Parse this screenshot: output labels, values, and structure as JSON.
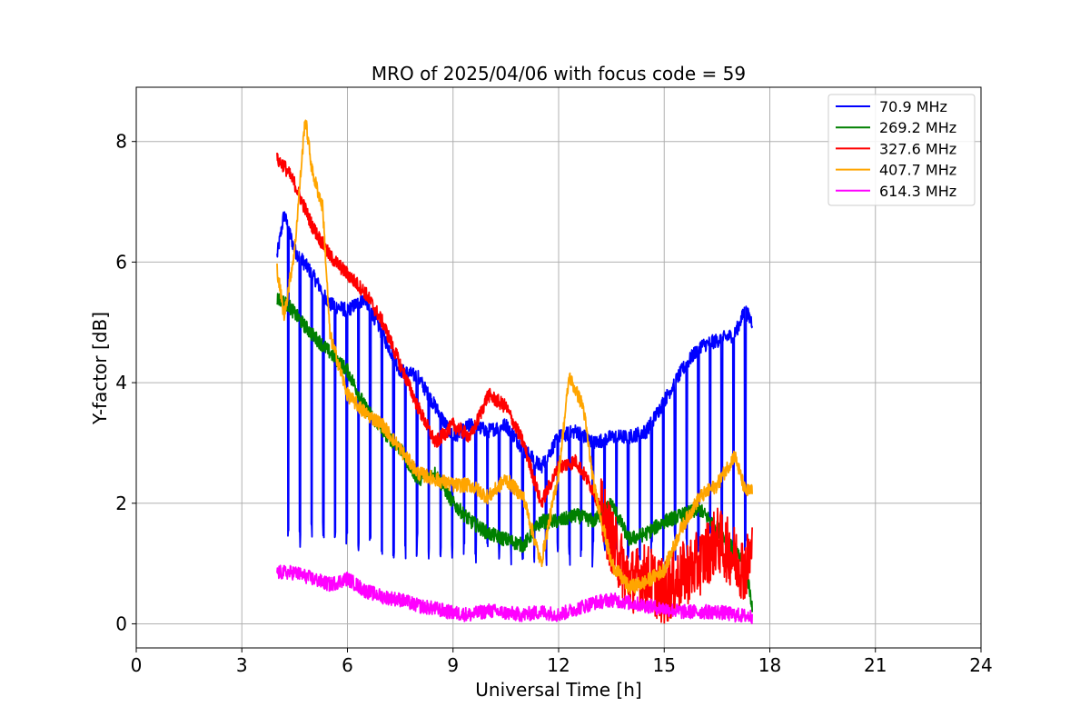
{
  "chart_data": {
    "type": "line",
    "title": "MRO of 2025/04/06 with focus code = 59",
    "xlabel": "Universal Time [h]",
    "ylabel": "Y-factor [dB]",
    "xlim": [
      0,
      24
    ],
    "ylim": [
      -0.4,
      8.9
    ],
    "xticks": [
      0,
      3,
      6,
      9,
      12,
      15,
      18,
      21,
      24
    ],
    "yticks": [
      0,
      2,
      4,
      6,
      8
    ],
    "grid": true,
    "legend_position": "top-right",
    "series": [
      {
        "name": " 70.9 MHz",
        "color": "#0000ff",
        "x": [
          4.0,
          4.2,
          4.5,
          5.0,
          5.5,
          6.0,
          6.5,
          7.0,
          7.5,
          8.0,
          8.5,
          9.0,
          9.5,
          10.0,
          10.5,
          11.0,
          11.5,
          12.0,
          12.5,
          13.0,
          13.5,
          14.0,
          14.5,
          15.0,
          15.5,
          16.0,
          16.5,
          17.0,
          17.3,
          17.5
        ],
        "y": [
          6.1,
          6.8,
          6.2,
          5.8,
          5.3,
          5.2,
          5.4,
          4.8,
          4.2,
          4.1,
          3.6,
          3.1,
          3.3,
          3.2,
          3.3,
          2.9,
          2.6,
          3.1,
          3.2,
          3.0,
          3.1,
          3.1,
          3.2,
          3.7,
          4.2,
          4.6,
          4.7,
          4.8,
          5.2,
          5.0
        ],
        "dips": {
          "period_h": 0.333,
          "low": 1.0
        }
      },
      {
        "name": " 269.2 MHz",
        "color": "#008000",
        "x": [
          4.0,
          4.3,
          4.7,
          5.0,
          5.5,
          6.0,
          6.5,
          7.0,
          7.5,
          8.0,
          8.5,
          9.0,
          9.5,
          10.0,
          10.5,
          11.0,
          11.5,
          12.0,
          12.5,
          13.0,
          13.5,
          14.0,
          14.5,
          15.0,
          15.5,
          16.0,
          16.5,
          17.0,
          17.3,
          17.5
        ],
        "y": [
          5.4,
          5.3,
          5.0,
          4.8,
          4.5,
          4.2,
          3.6,
          3.2,
          2.9,
          2.4,
          2.5,
          2.0,
          1.7,
          1.5,
          1.4,
          1.3,
          1.7,
          1.7,
          1.8,
          1.7,
          2.0,
          1.4,
          1.5,
          1.7,
          1.8,
          1.9,
          1.6,
          1.2,
          1.0,
          0.3
        ]
      },
      {
        "name": " 327.6 MHz",
        "color": "#ff0000",
        "x": [
          4.0,
          4.2,
          4.5,
          5.0,
          5.5,
          6.0,
          6.5,
          7.0,
          7.5,
          8.0,
          8.5,
          9.0,
          9.5,
          10.0,
          10.5,
          11.0,
          11.5,
          12.0,
          12.5,
          13.0,
          13.5,
          14.0,
          14.5,
          15.0,
          15.5,
          16.0,
          16.5,
          17.0,
          17.3,
          17.5
        ],
        "y": [
          7.7,
          7.6,
          7.3,
          6.6,
          6.1,
          5.8,
          5.5,
          5.0,
          4.3,
          3.6,
          3.0,
          3.3,
          3.1,
          3.8,
          3.6,
          3.0,
          2.0,
          2.6,
          2.7,
          2.2,
          1.4,
          0.7,
          0.8,
          0.5,
          0.8,
          1.0,
          1.4,
          1.1,
          0.9,
          1.2
        ],
        "noise_from_h": 13.2
      },
      {
        "name": " 407.7 MHz",
        "color": "#ffa500",
        "x": [
          4.0,
          4.2,
          4.5,
          4.8,
          5.0,
          5.3,
          5.5,
          6.0,
          6.5,
          7.0,
          7.5,
          8.0,
          8.5,
          9.0,
          9.5,
          10.0,
          10.5,
          11.0,
          11.5,
          12.0,
          12.3,
          12.7,
          13.0,
          13.5,
          14.0,
          14.5,
          15.0,
          15.5,
          16.0,
          16.5,
          17.0,
          17.3,
          17.5
        ],
        "y": [
          5.9,
          5.1,
          6.2,
          8.4,
          7.5,
          6.9,
          4.8,
          3.8,
          3.5,
          3.3,
          2.9,
          2.5,
          2.4,
          2.3,
          2.3,
          2.1,
          2.4,
          2.1,
          1.0,
          2.5,
          4.1,
          3.6,
          2.3,
          1.0,
          0.6,
          0.7,
          0.9,
          1.6,
          2.1,
          2.3,
          2.8,
          2.2,
          2.2
        ]
      },
      {
        "name": " 614.3 MHz",
        "color": "#ff00ff",
        "x": [
          4.0,
          4.5,
          5.0,
          5.5,
          6.0,
          6.5,
          7.0,
          7.5,
          8.0,
          8.5,
          9.0,
          9.5,
          10.0,
          10.5,
          11.0,
          11.5,
          12.0,
          12.5,
          13.0,
          13.5,
          14.0,
          14.5,
          15.0,
          15.5,
          16.0,
          16.5,
          17.0,
          17.5
        ],
        "y": [
          0.85,
          0.85,
          0.75,
          0.65,
          0.75,
          0.55,
          0.45,
          0.4,
          0.3,
          0.25,
          0.18,
          0.15,
          0.22,
          0.18,
          0.15,
          0.2,
          0.15,
          0.25,
          0.35,
          0.4,
          0.35,
          0.3,
          0.25,
          0.2,
          0.2,
          0.2,
          0.15,
          0.12
        ]
      }
    ]
  }
}
